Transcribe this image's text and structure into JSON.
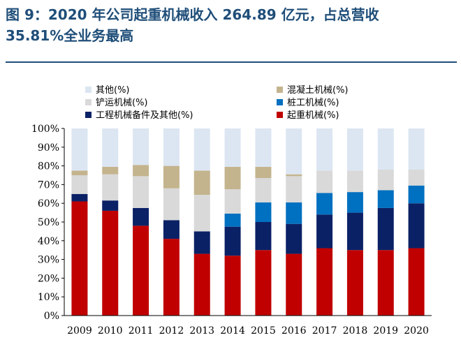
{
  "header": {
    "title_line1": "图 9：2020 年公司起重机械收入 264.89 亿元，占总营收",
    "title_line2": "35.81%全业务最高"
  },
  "chart_data": {
    "type": "bar",
    "stacked": true,
    "categories": [
      "2009",
      "2010",
      "2011",
      "2012",
      "2013",
      "2014",
      "2015",
      "2016",
      "2017",
      "2018",
      "2019",
      "2020"
    ],
    "ylim": [
      0,
      100
    ],
    "yticks": [
      "0%",
      "10%",
      "20%",
      "30%",
      "40%",
      "50%",
      "60%",
      "70%",
      "80%",
      "90%",
      "100%"
    ],
    "series": [
      {
        "name": "起重机械(%)",
        "color": "#c00000",
        "values": [
          61,
          56,
          48,
          41,
          33,
          32,
          35,
          33,
          36,
          35,
          35,
          36
        ]
      },
      {
        "name": "工程机械备件及其他(%)",
        "color": "#0b2166",
        "values": [
          4,
          5.5,
          9.5,
          10,
          12,
          15.5,
          15,
          16,
          18,
          20,
          22.5,
          24
        ]
      },
      {
        "name": "桩工机械(%)",
        "color": "#0070c0",
        "values": [
          0,
          0,
          0,
          0,
          0,
          7,
          10.5,
          11.5,
          11.5,
          11,
          9.5,
          9.5
        ]
      },
      {
        "name": "铲运机械(%)",
        "color": "#d9d9d9",
        "values": [
          10,
          14,
          17,
          17,
          19.5,
          13,
          13,
          14,
          12,
          11.5,
          11,
          8.5
        ]
      },
      {
        "name": "混凝土机械(%)",
        "color": "#c4b48e",
        "values": [
          2.5,
          4,
          6,
          12,
          13,
          12,
          6,
          1,
          0,
          0,
          0,
          0
        ]
      },
      {
        "name": "其他(%)",
        "color": "#dce6f2",
        "values": [
          22.5,
          20.5,
          19.5,
          20,
          22.5,
          20.5,
          20.5,
          24.5,
          22.5,
          22.5,
          22,
          22
        ]
      }
    ],
    "legend": [
      {
        "label": "其他(%)",
        "color": "#dce6f2"
      },
      {
        "label": "混凝土机械(%)",
        "color": "#c4b48e"
      },
      {
        "label": "铲运机械(%)",
        "color": "#d9d9d9"
      },
      {
        "label": "桩工机械(%)",
        "color": "#0070c0"
      },
      {
        "label": "工程机械备件及其他(%)",
        "color": "#0b2166"
      },
      {
        "label": "起重机械(%)",
        "color": "#c00000"
      }
    ],
    "legend_position": "top",
    "grid": false
  }
}
